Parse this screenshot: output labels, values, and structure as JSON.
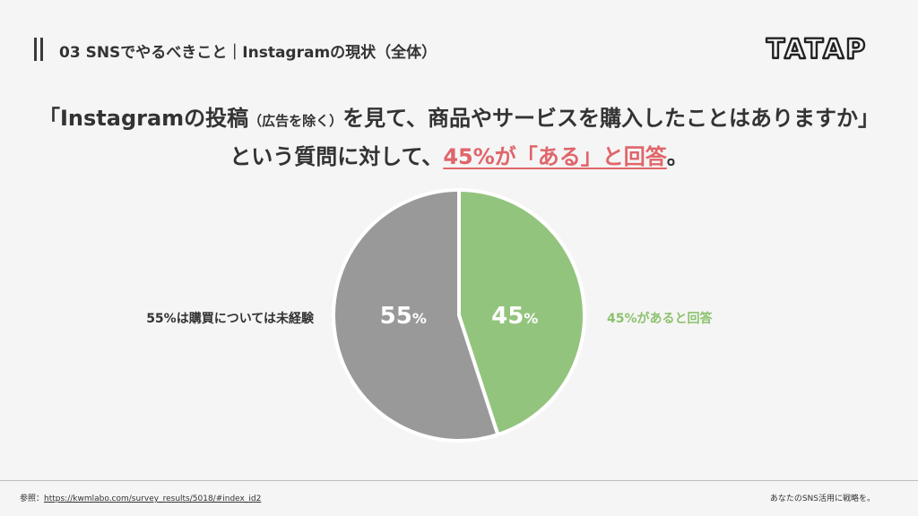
{
  "header": {
    "section_title": "03 SNSでやるべきこと｜Instagramの現状（全体）",
    "brand": "TATAP"
  },
  "question": {
    "line1_start": "「Instagramの投稿",
    "line1_small": "（広告を除く）",
    "line1_end": "を見て、商品やサービスを購入したことはありますか」",
    "line2_start": "という質問に対して、",
    "line2_highlight": "45%が「ある」と回答",
    "line2_end": "。"
  },
  "chart_data": {
    "type": "pie",
    "slices": [
      {
        "label": "45%があると回答",
        "value": 45,
        "display": "45",
        "unit": "%",
        "color": "#93c47d"
      },
      {
        "label": "55%は購買については未経験",
        "value": 55,
        "display": "55",
        "unit": "%",
        "color": "#999999"
      }
    ],
    "start_angle_deg": 0,
    "direction": "clockwise",
    "legend_placement": "left-and-right"
  },
  "footer": {
    "ref_label": "参照：",
    "ref_url": "https://kwmlabo.com/survey_results/5018/#index_id2",
    "tagline": "あなたのSNS活用に戦略を。"
  },
  "colors": {
    "accent": "#e0656a",
    "positive": "#8cc26e",
    "text": "#333333",
    "background": "#f5f5f5"
  }
}
